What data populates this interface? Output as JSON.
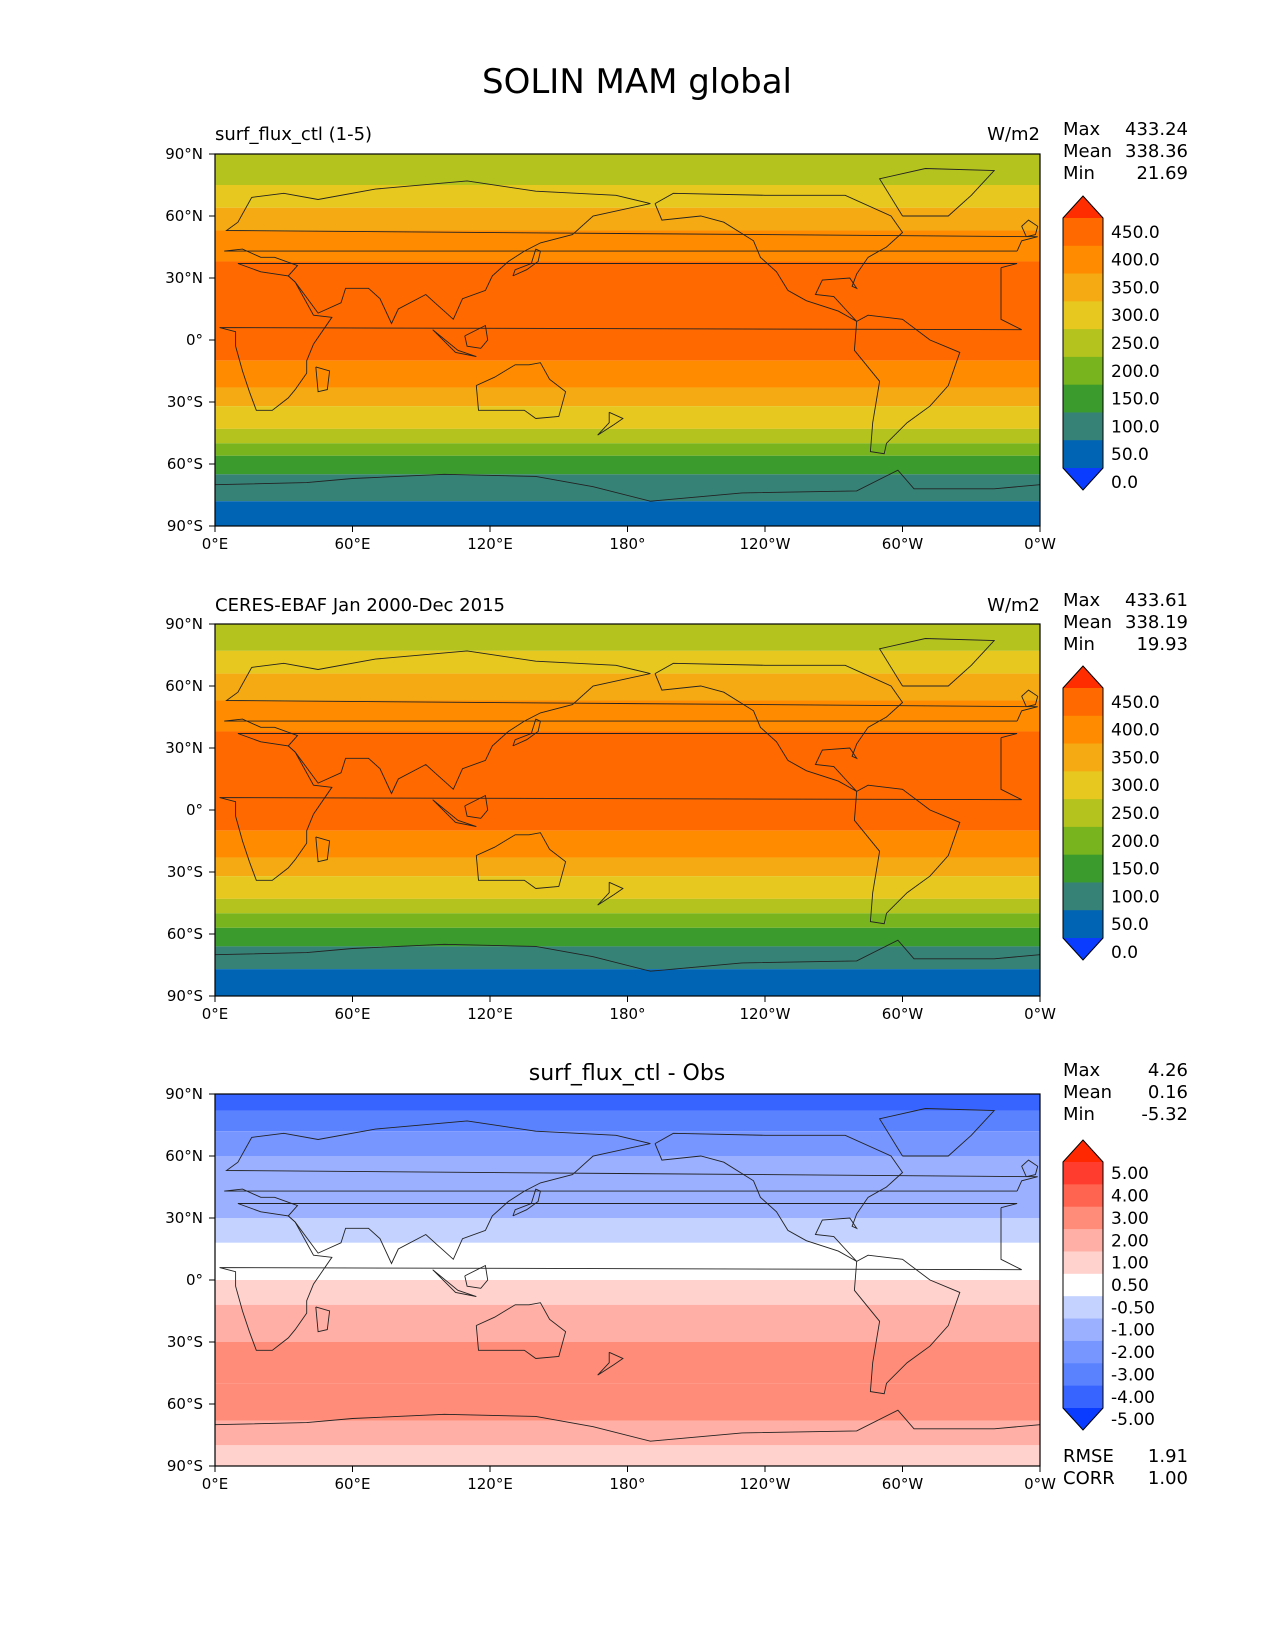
{
  "figure": {
    "title": "SOLIN MAM global"
  },
  "axes": {
    "x_ticks": [
      "0°E",
      "60°E",
      "120°E",
      "180°",
      "120°W",
      "60°W",
      "0°W"
    ],
    "y_ticks": [
      "90°N",
      "60°N",
      "30°N",
      "0°",
      "30°S",
      "60°S",
      "90°S"
    ]
  },
  "panels": [
    {
      "title_left": "surf_flux_ctl (1-5)",
      "title_center": "",
      "units": "W/m2",
      "stats": [
        {
          "label": "Max",
          "value": "433.24"
        },
        {
          "label": "Mean",
          "value": "338.36"
        },
        {
          "label": "Min",
          "value": "21.69"
        }
      ],
      "colorbar_labels": [
        "450.0",
        "400.0",
        "350.0",
        "300.0",
        "250.0",
        "200.0",
        "150.0",
        "100.0",
        "50.0",
        "0.0"
      ],
      "footer_stats": []
    },
    {
      "title_left": "CERES-EBAF Jan 2000-Dec 2015",
      "title_center": "",
      "units": "W/m2",
      "stats": [
        {
          "label": "Max",
          "value": "433.61"
        },
        {
          "label": "Mean",
          "value": "338.19"
        },
        {
          "label": "Min",
          "value": "19.93"
        }
      ],
      "colorbar_labels": [
        "450.0",
        "400.0",
        "350.0",
        "300.0",
        "250.0",
        "200.0",
        "150.0",
        "100.0",
        "50.0",
        "0.0"
      ],
      "footer_stats": []
    },
    {
      "title_left": "",
      "title_center": "surf_flux_ctl - Obs",
      "units": "",
      "stats": [
        {
          "label": "Max",
          "value": "4.26"
        },
        {
          "label": "Mean",
          "value": "0.16"
        },
        {
          "label": "Min",
          "value": "-5.32"
        }
      ],
      "colorbar_labels": [
        "5.00",
        "4.00",
        "3.00",
        "2.00",
        "1.00",
        "0.50",
        "-0.50",
        "-1.00",
        "-2.00",
        "-3.00",
        "-4.00",
        "-5.00"
      ],
      "footer_stats": [
        {
          "label": "RMSE",
          "value": "1.91"
        },
        {
          "label": "CORR",
          "value": "1.00"
        }
      ]
    }
  ],
  "colors": {
    "flux_scale": [
      "#0a3cff",
      "#0064b4",
      "#378277",
      "#3c9b2d",
      "#78b41e",
      "#b4c31e",
      "#e6c81e",
      "#f5aa14",
      "#ff8c00",
      "#ff6900",
      "#ff2d00"
    ],
    "diff_scale": [
      "#0a3cff",
      "#3764ff",
      "#5a82ff",
      "#7896ff",
      "#9bb0ff",
      "#c3d2ff",
      "#ffffff",
      "#ffd2cd",
      "#ffafa5",
      "#ff8c78",
      "#ff6450",
      "#ff3c2d",
      "#ff2800"
    ]
  },
  "chart_data": [
    {
      "type": "heatmap",
      "title": "surf_flux_ctl (1-5)",
      "units": "W/m2",
      "x": [
        0,
        60,
        120,
        180,
        240,
        300,
        360
      ],
      "xlim": [
        0,
        360
      ],
      "ylim": [
        -90,
        90
      ],
      "levels": [
        0,
        50,
        100,
        150,
        200,
        250,
        300,
        350,
        400,
        450
      ],
      "lat_bands": [
        {
          "lat": [
            75,
            90
          ],
          "level": 5
        },
        {
          "lat": [
            64,
            75
          ],
          "level": 6
        },
        {
          "lat": [
            53,
            64
          ],
          "level": 7
        },
        {
          "lat": [
            38,
            53
          ],
          "level": 8
        },
        {
          "lat": [
            -10,
            38
          ],
          "level": 9
        },
        {
          "lat": [
            -23,
            -10
          ],
          "level": 8
        },
        {
          "lat": [
            -32,
            -23
          ],
          "level": 7
        },
        {
          "lat": [
            -43,
            -32
          ],
          "level": 6
        },
        {
          "lat": [
            -50,
            -43
          ],
          "level": 5
        },
        {
          "lat": [
            -56,
            -50
          ],
          "level": 4
        },
        {
          "lat": [
            -65,
            -56
          ],
          "level": 3
        },
        {
          "lat": [
            -78,
            -65
          ],
          "level": 2
        },
        {
          "lat": [
            -90,
            -78
          ],
          "level": 1
        }
      ],
      "max": 433.24,
      "mean": 338.36,
      "min": 21.69
    },
    {
      "type": "heatmap",
      "title": "CERES-EBAF Jan 2000-Dec 2015",
      "units": "W/m2",
      "x": [
        0,
        60,
        120,
        180,
        240,
        300,
        360
      ],
      "xlim": [
        0,
        360
      ],
      "ylim": [
        -90,
        90
      ],
      "levels": [
        0,
        50,
        100,
        150,
        200,
        250,
        300,
        350,
        400,
        450
      ],
      "lat_bands": [
        {
          "lat": [
            77,
            90
          ],
          "level": 5
        },
        {
          "lat": [
            66,
            77
          ],
          "level": 6
        },
        {
          "lat": [
            53,
            66
          ],
          "level": 7
        },
        {
          "lat": [
            38,
            53
          ],
          "level": 8
        },
        {
          "lat": [
            -10,
            38
          ],
          "level": 9
        },
        {
          "lat": [
            -23,
            -10
          ],
          "level": 8
        },
        {
          "lat": [
            -32,
            -23
          ],
          "level": 7
        },
        {
          "lat": [
            -43,
            -32
          ],
          "level": 6
        },
        {
          "lat": [
            -50,
            -43
          ],
          "level": 5
        },
        {
          "lat": [
            -57,
            -50
          ],
          "level": 4
        },
        {
          "lat": [
            -66,
            -57
          ],
          "level": 3
        },
        {
          "lat": [
            -77,
            -66
          ],
          "level": 2
        },
        {
          "lat": [
            -90,
            -77
          ],
          "level": 1
        }
      ],
      "max": 433.61,
      "mean": 338.19,
      "min": 19.93
    },
    {
      "type": "heatmap",
      "title": "surf_flux_ctl - Obs",
      "units": "",
      "x": [
        0,
        60,
        120,
        180,
        240,
        300,
        360
      ],
      "xlim": [
        0,
        360
      ],
      "ylim": [
        -90,
        90
      ],
      "levels": [
        -5,
        -4,
        -3,
        -2,
        -1,
        -0.5,
        0.5,
        1,
        2,
        3,
        4,
        5
      ],
      "lat_bands": [
        {
          "lat": [
            82,
            90
          ],
          "level": 1
        },
        {
          "lat": [
            72,
            82
          ],
          "level": 2
        },
        {
          "lat": [
            60,
            72
          ],
          "level": 3
        },
        {
          "lat": [
            45,
            60
          ],
          "level": 4
        },
        {
          "lat": [
            30,
            45
          ],
          "level": 4
        },
        {
          "lat": [
            18,
            30
          ],
          "level": 5
        },
        {
          "lat": [
            0,
            18
          ],
          "level": 6
        },
        {
          "lat": [
            -12,
            0
          ],
          "level": 7
        },
        {
          "lat": [
            -30,
            -12
          ],
          "level": 8
        },
        {
          "lat": [
            -50,
            -30
          ],
          "level": 9
        },
        {
          "lat": [
            -68,
            -50
          ],
          "level": 9
        },
        {
          "lat": [
            -80,
            -68
          ],
          "level": 8
        },
        {
          "lat": [
            -90,
            -80
          ],
          "level": 7
        }
      ],
      "max": 4.26,
      "mean": 0.16,
      "min": -5.32,
      "rmse": 1.91,
      "corr": 1.0
    }
  ]
}
